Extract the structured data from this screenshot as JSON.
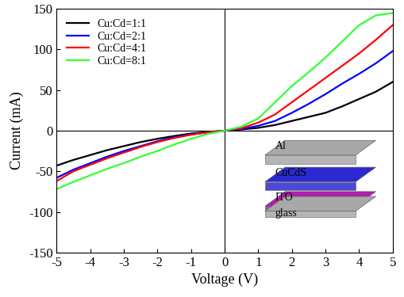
{
  "chart_data": {
    "type": "line",
    "x_label": "Voltage (V)",
    "y_label": "Current (mA)",
    "x": [
      -5,
      -4.5,
      -4,
      -3.5,
      -3,
      -2.5,
      -2,
      -1.5,
      -1,
      -0.5,
      0,
      0.5,
      1,
      1.5,
      2,
      2.5,
      3,
      3.5,
      4,
      4.5,
      5
    ],
    "series": [
      {
        "name": "Cu:Cd=1:1",
        "color": "#000000",
        "values": [
          -43,
          -36,
          -30,
          -24,
          -19,
          -14,
          -10,
          -6.5,
          -3.5,
          -1.5,
          0,
          1.5,
          3.5,
          7,
          12,
          17,
          22,
          30,
          39,
          48,
          60
        ]
      },
      {
        "name": "Cu:Cd=2:1",
        "color": "#0000ff",
        "values": [
          -58,
          -48,
          -40,
          -32,
          -25,
          -19,
          -13,
          -8,
          -4.5,
          -2,
          0,
          2,
          6,
          12,
          22,
          33,
          45,
          58,
          70,
          83,
          98
        ]
      },
      {
        "name": "Cu:Cd=4:1",
        "color": "#ff0000",
        "values": [
          -62,
          -50,
          -42,
          -34,
          -27,
          -20,
          -14,
          -9,
          -5,
          -2,
          0,
          3,
          10,
          20,
          35,
          50,
          65,
          80,
          95,
          112,
          130
        ]
      },
      {
        "name": "Cu:Cd=8:1",
        "color": "#33ff33",
        "values": [
          -72,
          -63,
          -55,
          -47,
          -40,
          -32,
          -25,
          -17,
          -10,
          -4,
          0,
          5,
          15,
          35,
          55,
          72,
          90,
          110,
          130,
          142,
          145
        ]
      }
    ],
    "xlim": [
      -5,
      5
    ],
    "xticks": [
      -5,
      -4,
      -3,
      -2,
      -1,
      0,
      1,
      2,
      3,
      4,
      5
    ],
    "ylim": [
      -150,
      150
    ],
    "yticks": [
      -150,
      -100,
      -50,
      0,
      50,
      100,
      150
    ],
    "legend": "upper left",
    "annotations": [
      "Al",
      "CuCdS",
      "ITO",
      "glass"
    ]
  }
}
